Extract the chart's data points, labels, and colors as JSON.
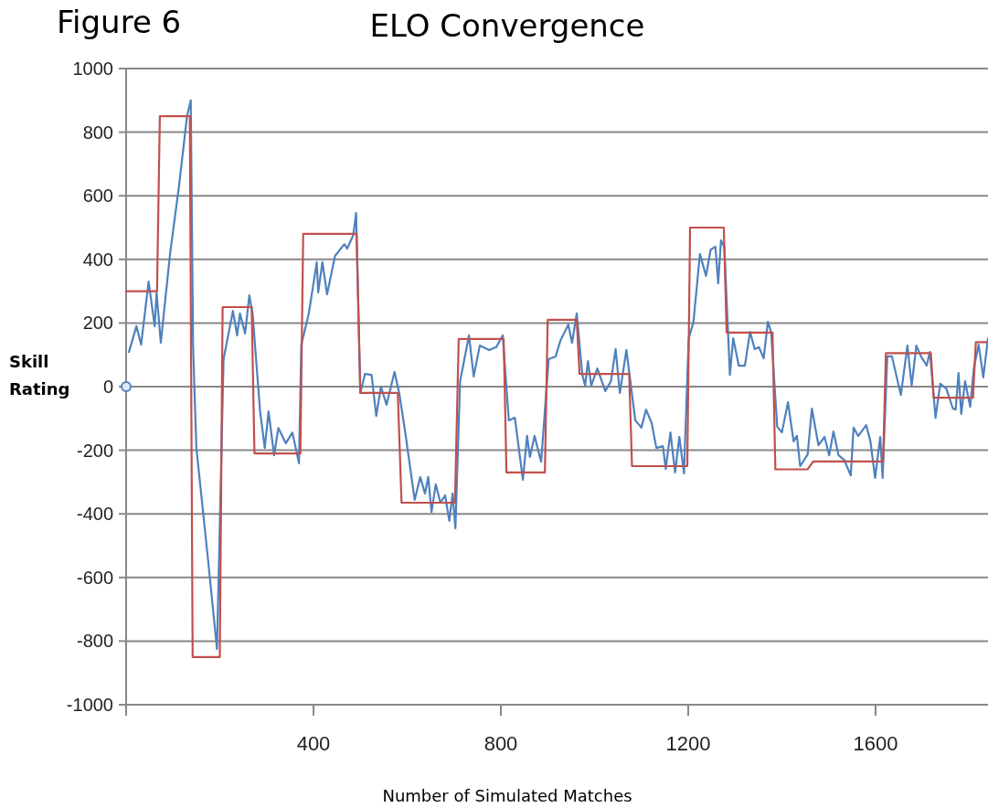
{
  "chart_data": {
    "type": "line",
    "title": "ELO Convergence",
    "xlabel": "Number of Simulated Matches",
    "ylabel": "Skill Rating",
    "annotations": [
      "Figure 6"
    ],
    "xlim": [
      0,
      1840
    ],
    "xticks": [
      {
        "value": 0,
        "label": null
      },
      400,
      800,
      1200,
      1600
    ],
    "ylim": [
      -1000,
      1000
    ],
    "yticks": [
      -1000,
      -800,
      -600,
      -400,
      -200,
      0,
      200,
      400,
      600,
      800,
      1000
    ],
    "grid": "y",
    "line_style": "solid",
    "series": [
      {
        "color": "#4f81bd",
        "x": [
          6,
          22,
          32,
          48,
          61,
          65,
          74,
          94,
          113,
          130,
          138,
          143,
          150,
          175,
          194,
          208,
          228,
          237,
          243,
          254,
          263,
          270,
          286,
          296,
          304,
          316,
          325,
          341,
          355,
          369,
          374,
          390,
          407,
          410,
          419,
          429,
          446,
          466,
          472,
          485,
          491,
          500,
          510,
          524,
          534,
          544,
          556,
          573,
          583,
          596,
          616,
          628,
          638,
          645,
          652,
          661,
          671,
          681,
          690,
          697,
          703,
          713,
          732,
          742,
          755,
          775,
          790,
          804,
          817,
          830,
          847,
          856,
          862,
          872,
          886,
          902,
          917,
          927,
          944,
          952,
          962,
          974,
          980,
          986,
          993,
          1006,
          1023,
          1035,
          1045,
          1054,
          1068,
          1074,
          1087,
          1100,
          1110,
          1122,
          1132,
          1146,
          1152,
          1162,
          1172,
          1181,
          1191,
          1201,
          1211,
          1225,
          1238,
          1248,
          1258,
          1264,
          1270,
          1277,
          1289,
          1296,
          1308,
          1321,
          1332,
          1342,
          1351,
          1361,
          1370,
          1377,
          1390,
          1400,
          1413,
          1425,
          1432,
          1439,
          1455,
          1464,
          1478,
          1491,
          1501,
          1510,
          1521,
          1533,
          1547,
          1553,
          1563,
          1580,
          1589,
          1599,
          1610,
          1615,
          1625,
          1635,
          1644,
          1654,
          1668,
          1677,
          1687,
          1697,
          1709,
          1716,
          1728,
          1738,
          1751,
          1765,
          1771,
          1777,
          1783,
          1791,
          1802,
          1810,
          1820,
          1830,
          1840
        ],
        "values": [
          109,
          190,
          132,
          330,
          190,
          296,
          138,
          420,
          632,
          850,
          900,
          124,
          -193,
          -546,
          -825,
          86,
          238,
          161,
          230,
          167,
          287,
          230,
          -78,
          -193,
          -78,
          -216,
          -130,
          -178,
          -144,
          -241,
          132,
          230,
          391,
          296,
          391,
          290,
          411,
          448,
          434,
          477,
          546,
          -20,
          40,
          37,
          -92,
          0,
          -57,
          46,
          -20,
          -145,
          -356,
          -284,
          -336,
          -284,
          -394,
          -307,
          -365,
          -342,
          -422,
          -336,
          -446,
          17,
          161,
          32,
          129,
          115,
          124,
          161,
          -106,
          -98,
          -293,
          -155,
          -221,
          -155,
          -236,
          86,
          95,
          144,
          195,
          138,
          230,
          37,
          3,
          80,
          3,
          57,
          -14,
          17,
          118,
          -20,
          115,
          46,
          -106,
          -129,
          -72,
          -115,
          -193,
          -187,
          -259,
          -144,
          -270,
          -158,
          -273,
          152,
          201,
          417,
          348,
          431,
          440,
          325,
          460,
          440,
          37,
          152,
          66,
          66,
          172,
          118,
          124,
          89,
          204,
          172,
          -126,
          -144,
          -49,
          -172,
          -155,
          -250,
          -213,
          -69,
          -184,
          -158,
          -216,
          -141,
          -216,
          -230,
          -279,
          -129,
          -155,
          -121,
          -172,
          -287,
          -158,
          -287,
          95,
          95,
          37,
          -26,
          129,
          3,
          129,
          95,
          66,
          109,
          -98,
          9,
          -6,
          -69,
          -72,
          43,
          -86,
          17,
          -63,
          60,
          132,
          29,
          152
        ]
      },
      {
        "color": "#c0504d",
        "x": [
          0,
          66,
          72,
          136,
          142,
          200,
          206,
          268,
          274,
          372,
          378,
          492,
          500,
          580,
          588,
          702,
          710,
          806,
          812,
          894,
          900,
          962,
          968,
          1074,
          1080,
          1198,
          1204,
          1276,
          1282,
          1380,
          1386,
          1455,
          1467,
          1616,
          1622,
          1718,
          1724,
          1808,
          1814,
          1840
        ],
        "values": [
          300,
          300,
          850,
          850,
          -850,
          -850,
          250,
          250,
          -210,
          -210,
          480,
          480,
          -20,
          -20,
          -365,
          -365,
          150,
          150,
          -270,
          -270,
          210,
          210,
          40,
          40,
          -250,
          -250,
          500,
          500,
          170,
          170,
          -260,
          -260,
          -235,
          -235,
          105,
          105,
          -35,
          -35,
          140,
          140
        ]
      },
      {
        "type": "scatter",
        "color": "#4f81bd",
        "marker": "circle",
        "x": [
          0
        ],
        "values": [
          0
        ]
      }
    ]
  }
}
